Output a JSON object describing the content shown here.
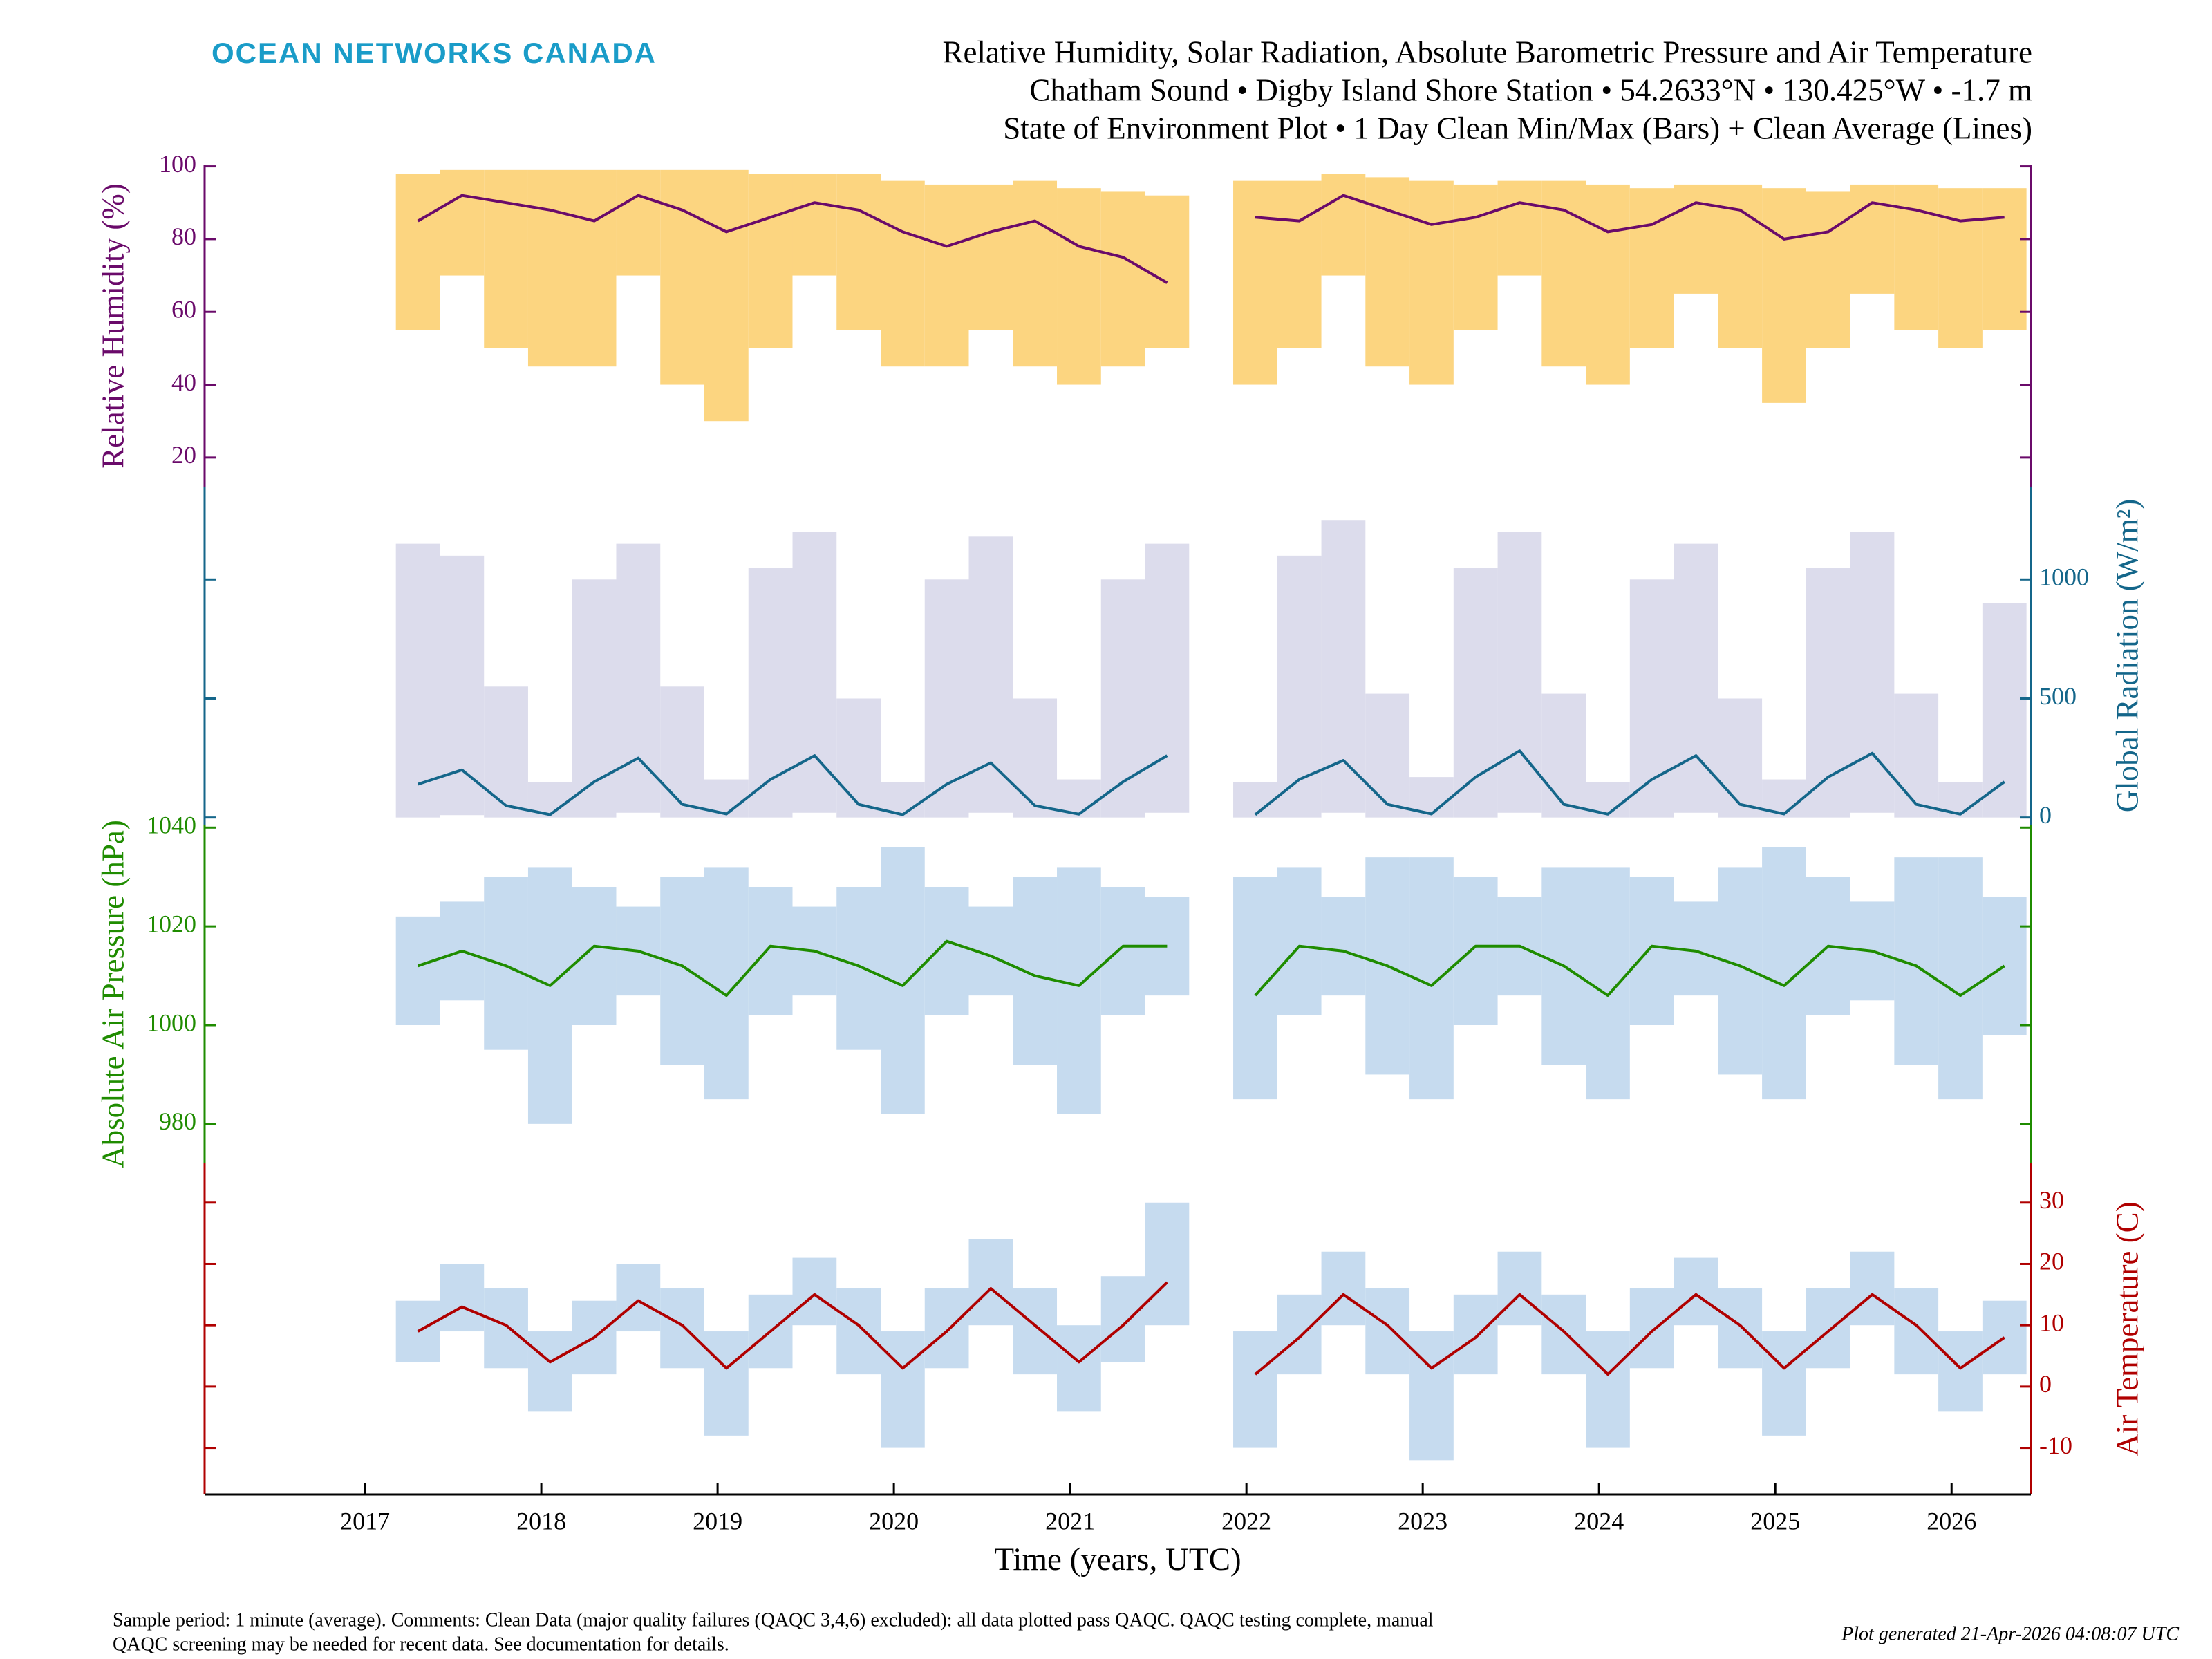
{
  "header": {
    "logo": "OCEAN NETWORKS CANADA",
    "title": "Relative Humidity, Solar Radiation, Absolute Barometric Pressure and Air Temperature",
    "subtitle": [
      "Chatham Sound • Digby Island Shore Station • 54.2633°N • 130.425°W • -1.7 m",
      "State of Environment Plot • 1 Day Clean Min/Max (Bars) + Clean Average (Lines)"
    ]
  },
  "footer": {
    "note": [
      "Sample period: 1 minute (average). Comments: Clean Data (major quality failures (QAQC 3,4,6) excluded): all data plotted pass QAQC. QAQC testing complete, manual",
      "QAQC screening may be needed for recent data. See documentation for details."
    ],
    "generated": "Plot generated 21-Apr-2026 04:08:07 UTC"
  },
  "chart_data": [
    {
      "type": "line",
      "ylabel": "Relative Humidity (%)",
      "label_side": "left",
      "axis_color": "#6a0a6a",
      "xlim": [
        2016.09,
        2026.45
      ],
      "ylim": [
        12,
        100.3
      ],
      "yticks": [
        20,
        40,
        60,
        80,
        100
      ],
      "x": [
        2017.3,
        2017.55,
        2017.8,
        2018.05,
        2018.3,
        2018.55,
        2018.8,
        2019.05,
        2019.3,
        2019.55,
        2019.8,
        2020.05,
        2020.3,
        2020.55,
        2020.8,
        2021.05,
        2021.3,
        2021.55,
        2021.8,
        2022.05,
        2022.3,
        2022.55,
        2022.8,
        2023.05,
        2023.3,
        2023.55,
        2023.8,
        2024.05,
        2024.3,
        2024.55,
        2024.8,
        2025.05,
        2025.3,
        2025.55,
        2025.8,
        2026.05,
        2026.3
      ],
      "series": [
        {
          "color": "#6a0a6a",
          "values": [
            85,
            92,
            90,
            88,
            85,
            92,
            88,
            82,
            86,
            90,
            88,
            82,
            78,
            82,
            85,
            78,
            75,
            68,
            null,
            86,
            85,
            92,
            88,
            84,
            86,
            90,
            88,
            82,
            84,
            90,
            88,
            80,
            82,
            90,
            88,
            85,
            86
          ]
        }
      ],
      "bars": {
        "color": "#fcd580",
        "min": [
          55,
          70,
          50,
          45,
          45,
          70,
          40,
          30,
          50,
          70,
          55,
          45,
          45,
          55,
          45,
          40,
          45,
          50,
          null,
          40,
          50,
          70,
          45,
          40,
          55,
          70,
          45,
          40,
          50,
          65,
          50,
          35,
          50,
          65,
          55,
          50,
          55
        ],
        "max": [
          98,
          99,
          99,
          99,
          99,
          99,
          99,
          99,
          98,
          98,
          98,
          96,
          95,
          95,
          96,
          94,
          93,
          92,
          null,
          96,
          96,
          98,
          97,
          96,
          95,
          96,
          96,
          95,
          94,
          95,
          95,
          94,
          93,
          95,
          95,
          94,
          94
        ]
      }
    },
    {
      "type": "line",
      "ylabel": "Global Radiation (W/m²)",
      "label_side": "right",
      "axis_color": "#14668a",
      "xlim": [
        2016.09,
        2026.45
      ],
      "ylim": [
        -30,
        1390
      ],
      "yticks": [
        0,
        500,
        1000
      ],
      "x": [
        2017.3,
        2017.55,
        2017.8,
        2018.05,
        2018.3,
        2018.55,
        2018.8,
        2019.05,
        2019.3,
        2019.55,
        2019.8,
        2020.05,
        2020.3,
        2020.55,
        2020.8,
        2021.05,
        2021.3,
        2021.55,
        2021.8,
        2022.05,
        2022.3,
        2022.55,
        2022.8,
        2023.05,
        2023.3,
        2023.55,
        2023.8,
        2024.05,
        2024.3,
        2024.55,
        2024.8,
        2025.05,
        2025.3,
        2025.55,
        2025.8,
        2026.05,
        2026.3
      ],
      "series": [
        {
          "color": "#14668a",
          "values": [
            140,
            200,
            50,
            12,
            150,
            250,
            55,
            15,
            160,
            260,
            55,
            12,
            140,
            230,
            50,
            14,
            150,
            260,
            null,
            12,
            160,
            240,
            55,
            15,
            170,
            280,
            55,
            14,
            160,
            260,
            55,
            15,
            170,
            270,
            55,
            14,
            150
          ]
        }
      ],
      "bars": {
        "color": "#dcdcec",
        "min": [
          0,
          10,
          0,
          0,
          0,
          20,
          0,
          0,
          0,
          20,
          0,
          0,
          0,
          20,
          0,
          0,
          0,
          20,
          null,
          0,
          0,
          20,
          0,
          0,
          0,
          20,
          0,
          0,
          0,
          20,
          0,
          0,
          0,
          20,
          0,
          0,
          0
        ],
        "max": [
          1150,
          1100,
          550,
          150,
          1000,
          1150,
          550,
          160,
          1050,
          1200,
          500,
          150,
          1000,
          1180,
          500,
          160,
          1000,
          1150,
          null,
          150,
          1100,
          1250,
          520,
          170,
          1050,
          1200,
          520,
          150,
          1000,
          1150,
          500,
          160,
          1050,
          1200,
          520,
          150,
          900
        ]
      }
    },
    {
      "type": "line",
      "ylabel": "Absolute Air Pressure (hPa)",
      "label_side": "left",
      "axis_color": "#1f8c00",
      "xlim": [
        2016.09,
        2026.45
      ],
      "ylim": [
        972,
        1040.6
      ],
      "yticks": [
        980,
        1000,
        1020,
        1040
      ],
      "x": [
        2017.3,
        2017.55,
        2017.8,
        2018.05,
        2018.3,
        2018.55,
        2018.8,
        2019.05,
        2019.3,
        2019.55,
        2019.8,
        2020.05,
        2020.3,
        2020.55,
        2020.8,
        2021.05,
        2021.3,
        2021.55,
        2021.8,
        2022.05,
        2022.3,
        2022.55,
        2022.8,
        2023.05,
        2023.3,
        2023.55,
        2023.8,
        2024.05,
        2024.3,
        2024.55,
        2024.8,
        2025.05,
        2025.3,
        2025.55,
        2025.8,
        2026.05,
        2026.3
      ],
      "series": [
        {
          "color": "#1f8c00",
          "values": [
            1012,
            1015,
            1012,
            1008,
            1016,
            1015,
            1012,
            1006,
            1016,
            1015,
            1012,
            1008,
            1017,
            1014,
            1010,
            1008,
            1016,
            1016,
            null,
            1006,
            1016,
            1015,
            1012,
            1008,
            1016,
            1016,
            1012,
            1006,
            1016,
            1015,
            1012,
            1008,
            1016,
            1015,
            1012,
            1006,
            1012
          ]
        }
      ],
      "bars": {
        "color": "#c6dbef",
        "min": [
          1000,
          1005,
          995,
          980,
          1000,
          1006,
          992,
          985,
          1002,
          1006,
          995,
          982,
          1002,
          1006,
          992,
          982,
          1002,
          1006,
          null,
          985,
          1002,
          1006,
          990,
          985,
          1000,
          1006,
          992,
          985,
          1000,
          1006,
          990,
          985,
          1002,
          1005,
          992,
          985,
          998
        ],
        "max": [
          1022,
          1025,
          1030,
          1032,
          1028,
          1024,
          1030,
          1032,
          1028,
          1024,
          1028,
          1036,
          1028,
          1024,
          1030,
          1032,
          1028,
          1026,
          null,
          1030,
          1032,
          1026,
          1034,
          1034,
          1030,
          1026,
          1032,
          1032,
          1030,
          1025,
          1032,
          1036,
          1030,
          1025,
          1034,
          1034,
          1026
        ]
      }
    },
    {
      "type": "line",
      "ylabel": "Air Temperature (C)",
      "label_side": "right",
      "axis_color": "#b00000",
      "xlim": [
        2016.09,
        2026.45
      ],
      "ylim": [
        -17.6,
        36.4
      ],
      "yticks": [
        -10,
        0,
        10,
        20,
        30
      ],
      "xlabel": "Time (years, UTC)",
      "xticks": [
        2017,
        2018,
        2019,
        2020,
        2021,
        2022,
        2023,
        2024,
        2025,
        2026
      ],
      "x": [
        2017.3,
        2017.55,
        2017.8,
        2018.05,
        2018.3,
        2018.55,
        2018.8,
        2019.05,
        2019.3,
        2019.55,
        2019.8,
        2020.05,
        2020.3,
        2020.55,
        2020.8,
        2021.05,
        2021.3,
        2021.55,
        2021.8,
        2022.05,
        2022.3,
        2022.55,
        2022.8,
        2023.05,
        2023.3,
        2023.55,
        2023.8,
        2024.05,
        2024.3,
        2024.55,
        2024.8,
        2025.05,
        2025.3,
        2025.55,
        2025.8,
        2026.05,
        2026.3
      ],
      "series": [
        {
          "color": "#b00000",
          "values": [
            9,
            13,
            10,
            4,
            8,
            14,
            10,
            3,
            9,
            15,
            10,
            3,
            9,
            16,
            10,
            4,
            10,
            17,
            null,
            2,
            8,
            15,
            10,
            3,
            8,
            15,
            9,
            2,
            9,
            15,
            10,
            3,
            9,
            15,
            10,
            3,
            8
          ]
        }
      ],
      "bars": {
        "color": "#c6dbef",
        "min": [
          4,
          9,
          3,
          -4,
          2,
          9,
          3,
          -8,
          3,
          10,
          2,
          -10,
          3,
          10,
          2,
          -4,
          4,
          10,
          null,
          -10,
          2,
          10,
          2,
          -12,
          2,
          10,
          2,
          -10,
          3,
          10,
          3,
          -8,
          3,
          10,
          2,
          -4,
          2
        ],
        "max": [
          14,
          20,
          16,
          9,
          14,
          20,
          16,
          9,
          15,
          21,
          16,
          9,
          16,
          24,
          16,
          10,
          18,
          30,
          null,
          9,
          15,
          22,
          16,
          9,
          15,
          22,
          15,
          9,
          16,
          21,
          16,
          9,
          16,
          22,
          16,
          9,
          14
        ]
      }
    }
  ]
}
